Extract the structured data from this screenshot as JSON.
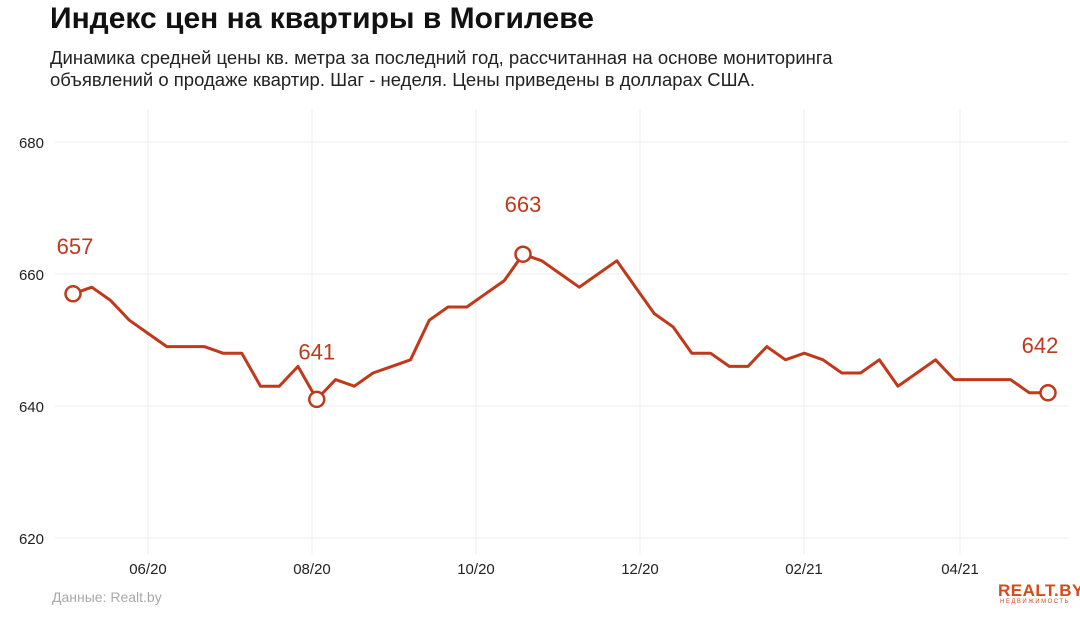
{
  "header": {
    "title": "Индекс цен на квартиры в Могилеве",
    "subtitle": "Динамика средней цены кв. метра за последний год, рассчитанная на основе мониторинга объявлений о продаже квартир. Шаг - неделя. Цены приведены в долларах США."
  },
  "footer": {
    "source": "Данные: Realt.by",
    "logo_text": "REALT.BY",
    "logo_sub": "НЕДВИЖИМОСТЬ"
  },
  "colors": {
    "line": "#c0391b",
    "grid": "#ececec",
    "logo": "#d44a1c"
  },
  "chart_data": {
    "type": "line",
    "title": "Индекс цен на квартиры в Могилеве",
    "xlabel": "",
    "ylabel": "",
    "ylim": [
      620,
      680
    ],
    "yticks": [
      620,
      640,
      660,
      680
    ],
    "xticks": [
      "06/20",
      "08/20",
      "10/20",
      "12/20",
      "02/21",
      "04/21"
    ],
    "grid": true,
    "series": [
      {
        "values": [
          657,
          658,
          656,
          653,
          651,
          649,
          649,
          649,
          648,
          648,
          643,
          643,
          646,
          641,
          644,
          643,
          645,
          646,
          647,
          653,
          655,
          655,
          657,
          659,
          663,
          662,
          660,
          658,
          660,
          662,
          658,
          654,
          652,
          648,
          648,
          646,
          646,
          649,
          647,
          648,
          647,
          645,
          645,
          647,
          643,
          645,
          647,
          644,
          644,
          644,
          644,
          642,
          642
        ]
      }
    ],
    "annotations": [
      {
        "index": 0,
        "label": "657"
      },
      {
        "index": 13,
        "label": "641"
      },
      {
        "index": 24,
        "label": "663"
      },
      {
        "index": 52,
        "label": "642"
      }
    ]
  }
}
